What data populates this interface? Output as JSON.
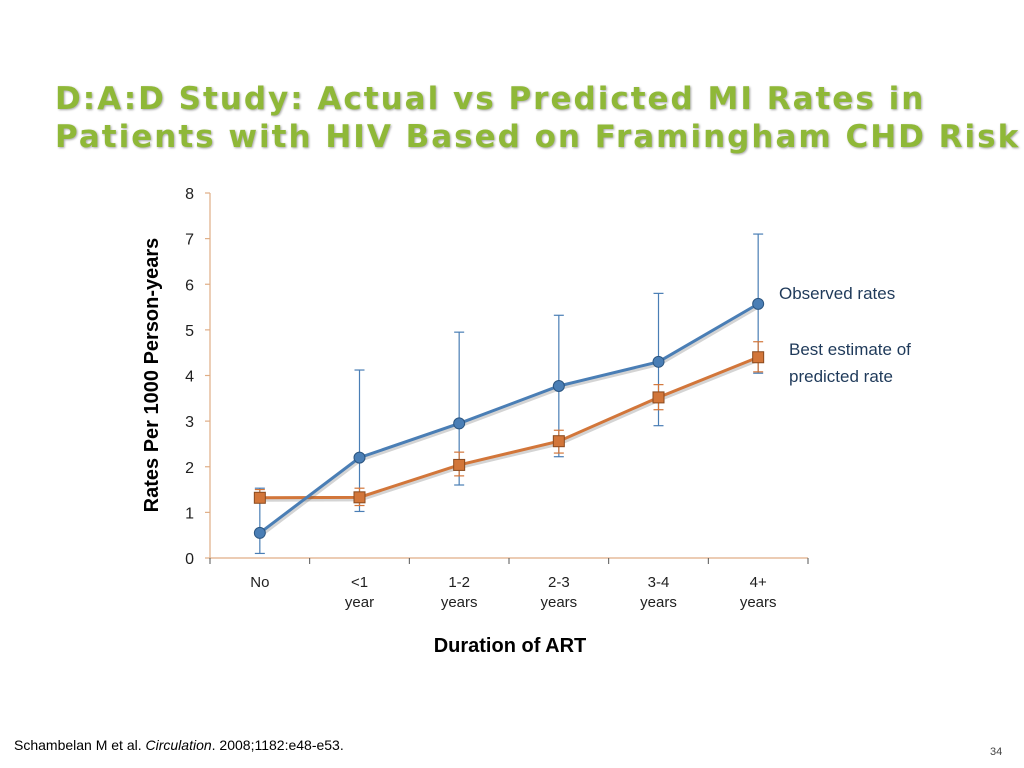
{
  "slide": {
    "title_line1": "D:A:D Study: Actual vs Predicted MI Rates in",
    "title_line2": "Patients with HIV Based on Framingham CHD Risk",
    "citation_authors": "Schambelan M et al. ",
    "citation_journal": "Circulation",
    "citation_rest": ". 2008;1182:e48-e53.",
    "page_number": "34"
  },
  "chart_data": {
    "type": "line",
    "ylabel": "Rates Per 1000 Person-years",
    "xlabel": "Duration of ART",
    "ylim": [
      0,
      8
    ],
    "yticks": [
      0,
      1,
      2,
      3,
      4,
      5,
      6,
      7,
      8
    ],
    "categories": [
      [
        "No"
      ],
      [
        "<1",
        "year"
      ],
      [
        "1-2",
        "years"
      ],
      [
        "2-3",
        "years"
      ],
      [
        "3-4",
        "years"
      ],
      [
        "4+",
        "years"
      ]
    ],
    "series": [
      {
        "name": "Observed rates",
        "color": "#4a7eb5",
        "marker": "circle",
        "values": [
          0.55,
          2.2,
          2.95,
          3.77,
          4.3,
          5.57
        ],
        "error_low": [
          0.1,
          1.02,
          1.6,
          2.22,
          2.9,
          4.05
        ],
        "error_high": [
          1.53,
          4.12,
          4.95,
          5.32,
          5.8,
          7.1
        ]
      },
      {
        "name": "Best estimate of predicted rate",
        "color": "#d2763a",
        "marker": "square",
        "values": [
          1.32,
          1.33,
          2.04,
          2.56,
          3.52,
          4.4
        ],
        "error_low": [
          1.22,
          1.15,
          1.8,
          2.3,
          3.25,
          4.08
        ],
        "error_high": [
          1.5,
          1.53,
          2.32,
          2.8,
          3.8,
          4.74
        ]
      }
    ],
    "annotations": [
      [
        "Observed rates"
      ],
      [
        "Best estimate of",
        "predicted rate"
      ]
    ],
    "grid": false,
    "legend": "inline labels at right"
  }
}
